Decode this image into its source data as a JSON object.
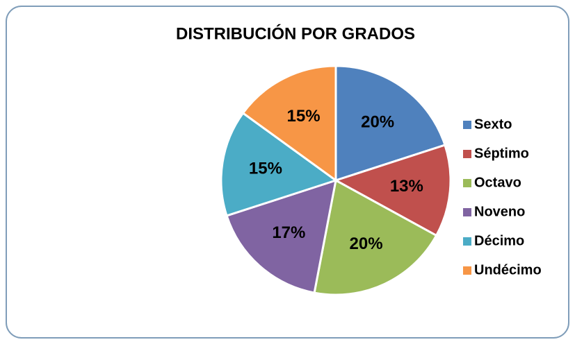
{
  "chart_data": {
    "type": "pie",
    "title": "DISTRIBUCIÓN POR GRADOS",
    "categories": [
      "Sexto",
      "Séptimo",
      "Octavo",
      "Noveno",
      "Décimo",
      "Undécimo"
    ],
    "values": [
      20,
      13,
      20,
      17,
      15,
      15
    ],
    "value_labels": [
      "20%",
      "13%",
      "20%",
      "17%",
      "15%",
      "15%"
    ],
    "colors": [
      "#4f81bd",
      "#c0504d",
      "#9bbb59",
      "#8064a2",
      "#4bacc6",
      "#f79646"
    ],
    "legend": "right"
  }
}
